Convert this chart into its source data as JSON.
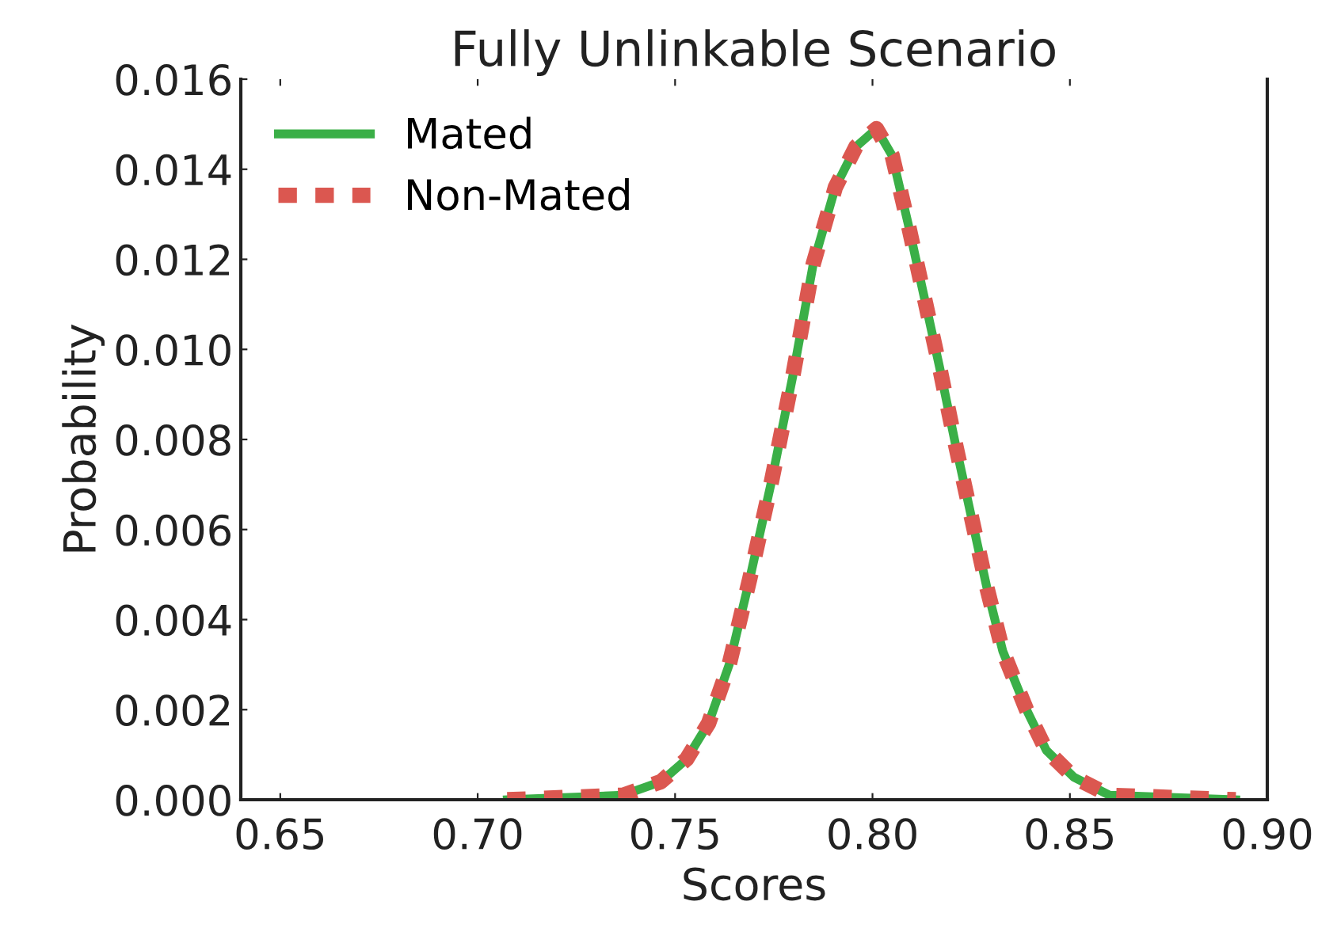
{
  "chart_data": {
    "type": "line",
    "title": "Fully Unlinkable Scenario",
    "xlabel": "Scores",
    "ylabel": "Probability",
    "xlim": [
      0.64,
      0.9
    ],
    "xticks": [
      {
        "value": 0.65,
        "label": "0.65"
      },
      {
        "value": 0.7,
        "label": "0.70"
      },
      {
        "value": 0.75,
        "label": "0.75"
      },
      {
        "value": 0.8,
        "label": "0.80"
      },
      {
        "value": 0.85,
        "label": "0.85"
      },
      {
        "value": 0.9,
        "label": "0.90"
      }
    ],
    "ylim": [
      0,
      0.016
    ],
    "yticks": [
      {
        "value": 0,
        "label": "0.000"
      },
      {
        "value": 0.002,
        "label": "0.002"
      },
      {
        "value": 0.004,
        "label": "0.004"
      },
      {
        "value": 0.006,
        "label": "0.006"
      },
      {
        "value": 0.008,
        "label": "0.008"
      },
      {
        "value": 0.01,
        "label": "0.010"
      },
      {
        "value": 0.012,
        "label": "0.012"
      },
      {
        "value": 0.014,
        "label": "0.014"
      },
      {
        "value": 0.016,
        "label": "0.016"
      }
    ],
    "x": [
      0.7075,
      0.7368,
      0.7464,
      0.7529,
      0.7585,
      0.7637,
      0.7689,
      0.7745,
      0.7798,
      0.785,
      0.7906,
      0.7958,
      0.801,
      0.805,
      0.809,
      0.813,
      0.817,
      0.821,
      0.825,
      0.829,
      0.833,
      0.839,
      0.844,
      0.851,
      0.86,
      0.892
    ],
    "series": [
      {
        "name": "Mated",
        "color": "#3aaf47",
        "line_style": "solid",
        "values": [
          0,
          0.0001,
          0.0004,
          0.0009,
          0.0017,
          0.003,
          0.0049,
          0.0071,
          0.0094,
          0.0119,
          0.0136,
          0.0145,
          0.0149,
          0.0143,
          0.0128,
          0.0112,
          0.0096,
          0.0079,
          0.0063,
          0.0047,
          0.0033,
          0.002,
          0.0011,
          0.0005,
          0.0001,
          0
        ]
      },
      {
        "name": "Non-Mated",
        "color": "#db5750",
        "line_style": "dotted",
        "values": [
          0,
          0.0001,
          0.0004,
          0.0009,
          0.0017,
          0.003,
          0.0049,
          0.0071,
          0.0094,
          0.0119,
          0.0136,
          0.0145,
          0.0149,
          0.0143,
          0.0128,
          0.0112,
          0.0096,
          0.0079,
          0.0063,
          0.0047,
          0.0033,
          0.002,
          0.0011,
          0.0005,
          0.0001,
          0
        ]
      }
    ],
    "grid": false,
    "legend": "top left"
  }
}
